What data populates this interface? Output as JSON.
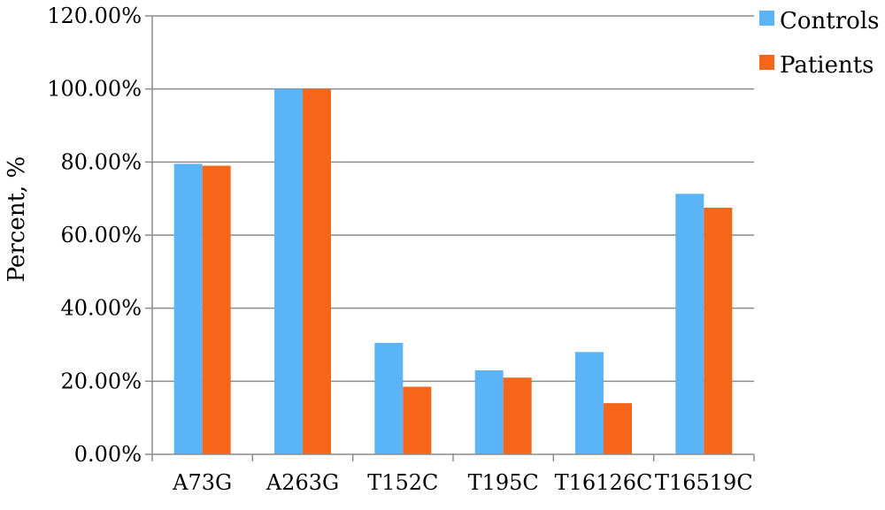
{
  "chart_data": {
    "type": "bar",
    "title": "",
    "xlabel": "",
    "ylabel": "Percent, %",
    "ylim": [
      0,
      120
    ],
    "yticks": [
      "0.00%",
      "20.00%",
      "40.00%",
      "60.00%",
      "80.00%",
      "100.00%",
      "120.00%"
    ],
    "grid": true,
    "legend_position": "top-right",
    "categories": [
      "A73G",
      "A263G",
      "T152C",
      "T195C",
      "T16126C",
      "T16519C"
    ],
    "series": [
      {
        "name": "Controls",
        "color": "#5AB4F5",
        "values": [
          79.5,
          100,
          30.5,
          23,
          28,
          71.3
        ]
      },
      {
        "name": "Patients",
        "color": "#F6661A",
        "values": [
          79,
          100,
          18.5,
          21,
          14,
          67.5
        ]
      }
    ]
  }
}
